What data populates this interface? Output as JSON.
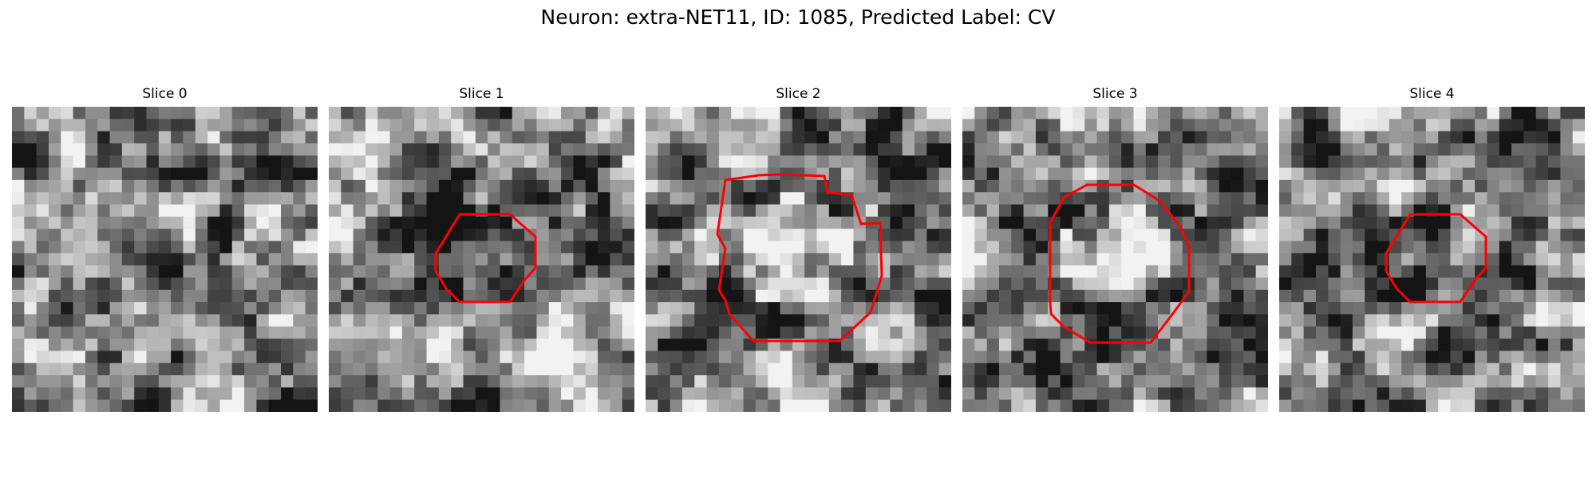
{
  "figure": {
    "title": "Neuron: extra-NET11, ID: 1085, Predicted Label: CV"
  },
  "colors": {
    "background": "#ffffff",
    "contour": "#ff0000",
    "colormap": "gray"
  },
  "panels": [
    {
      "label": "Slice 0",
      "has_contour": false
    },
    {
      "label": "Slice 1",
      "has_contour": true
    },
    {
      "label": "Slice 2",
      "has_contour": true
    },
    {
      "label": "Slice 3",
      "has_contour": true
    },
    {
      "label": "Slice 4",
      "has_contour": true
    }
  ]
}
